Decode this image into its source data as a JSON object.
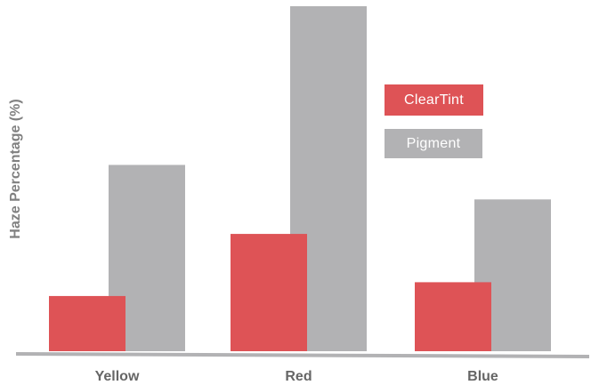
{
  "chart_data": {
    "type": "bar",
    "title": "",
    "xlabel": "",
    "ylabel": "Haze Percentage (%)",
    "categories": [
      "Yellow",
      "Red",
      "Blue"
    ],
    "series": [
      {
        "name": "ClearTint",
        "values": [
          8,
          17,
          10
        ],
        "color": "#de5356"
      },
      {
        "name": "Pigment",
        "values": [
          27,
          50,
          22
        ],
        "color": "#b2b2b4"
      }
    ],
    "ylim": [
      0,
      50
    ],
    "grid": false,
    "legend_position": "right",
    "axis_color": "#b2b2b4",
    "label_color": "#666666"
  }
}
